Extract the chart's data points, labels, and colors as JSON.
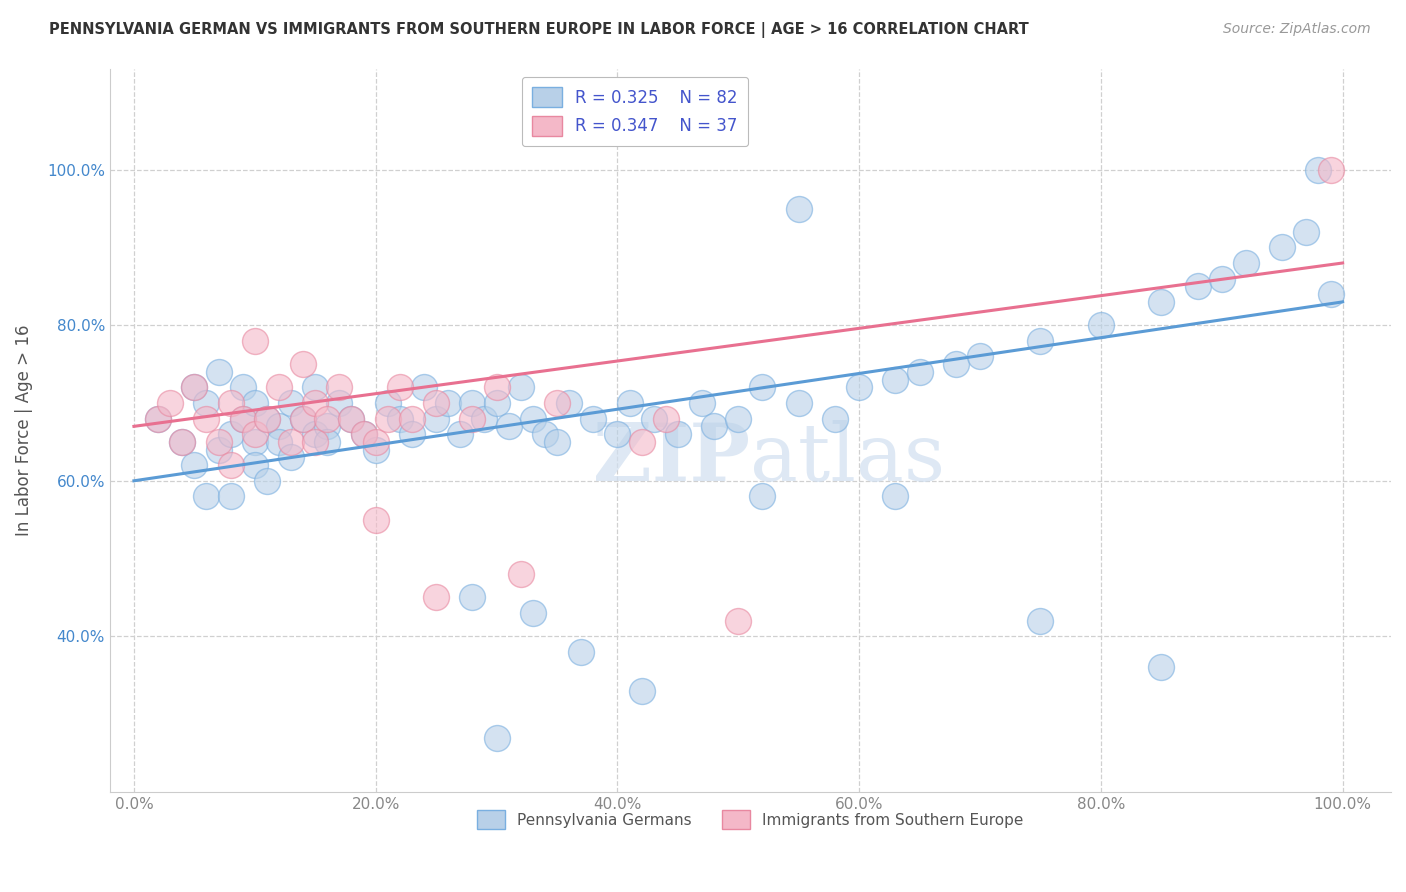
{
  "title": "PENNSYLVANIA GERMAN VS IMMIGRANTS FROM SOUTHERN EUROPE IN LABOR FORCE | AGE > 16 CORRELATION CHART",
  "source": "Source: ZipAtlas.com",
  "ylabel": "In Labor Force | Age > 16",
  "x_ticklabels": [
    "0.0%",
    "20.0%",
    "40.0%",
    "60.0%",
    "80.0%",
    "100.0%"
  ],
  "y_ticklabels": [
    "40.0%",
    "60.0%",
    "80.0%",
    "100.0%"
  ],
  "x_ticks": [
    0,
    20,
    40,
    60,
    80,
    100
  ],
  "y_ticks": [
    40,
    60,
    80,
    100
  ],
  "xlim": [
    -2,
    104
  ],
  "ylim": [
    20,
    113
  ],
  "legend_labels": [
    "Pennsylvania Germans",
    "Immigrants from Southern Europe"
  ],
  "legend_r1": "R = 0.325",
  "legend_n1": "N = 82",
  "legend_r2": "R = 0.347",
  "legend_n2": "N = 37",
  "color_blue": "#b8d0e8",
  "color_pink": "#f4b8c8",
  "edge_blue": "#7aafe0",
  "edge_pink": "#e888a0",
  "line_blue": "#5b9bd5",
  "line_pink": "#e87090",
  "watermark_color": "#d0dff0",
  "background_color": "#ffffff",
  "grid_color": "#d0d0d0",
  "title_color": "#333333",
  "legend_text_color": "#4455cc",
  "ytick_color": "#4488cc",
  "xtick_color": "#888888",
  "blue_scatter_x": [
    2,
    4,
    5,
    5,
    6,
    6,
    7,
    7,
    8,
    8,
    9,
    9,
    10,
    10,
    10,
    11,
    11,
    12,
    12,
    13,
    13,
    14,
    15,
    15,
    16,
    16,
    17,
    18,
    19,
    20,
    21,
    22,
    23,
    24,
    25,
    26,
    27,
    28,
    29,
    30,
    31,
    32,
    33,
    34,
    35,
    36,
    38,
    40,
    41,
    43,
    45,
    47,
    48,
    50,
    52,
    55,
    58,
    60,
    63,
    65,
    68,
    70,
    75,
    80,
    85,
    88,
    90,
    92,
    95,
    97,
    99,
    28,
    33,
    37,
    42,
    52,
    63,
    75,
    85,
    98,
    55,
    30
  ],
  "blue_scatter_y": [
    68,
    65,
    72,
    62,
    58,
    70,
    64,
    74,
    66,
    58,
    68,
    72,
    65,
    62,
    70,
    68,
    60,
    67,
    65,
    63,
    70,
    68,
    66,
    72,
    67,
    65,
    70,
    68,
    66,
    64,
    70,
    68,
    66,
    72,
    68,
    70,
    66,
    70,
    68,
    70,
    67,
    72,
    68,
    66,
    65,
    70,
    68,
    66,
    70,
    68,
    66,
    70,
    67,
    68,
    72,
    70,
    68,
    72,
    73,
    74,
    75,
    76,
    78,
    80,
    83,
    85,
    86,
    88,
    90,
    92,
    84,
    45,
    43,
    38,
    33,
    58,
    58,
    42,
    36,
    100,
    95,
    27
  ],
  "pink_scatter_x": [
    2,
    3,
    4,
    5,
    6,
    7,
    8,
    8,
    9,
    10,
    11,
    12,
    13,
    14,
    15,
    15,
    16,
    17,
    18,
    19,
    20,
    21,
    22,
    23,
    25,
    28,
    30,
    35,
    44,
    42,
    50,
    99,
    10,
    14,
    20,
    25,
    32
  ],
  "pink_scatter_y": [
    68,
    70,
    65,
    72,
    68,
    65,
    62,
    70,
    68,
    66,
    68,
    72,
    65,
    68,
    70,
    65,
    68,
    72,
    68,
    66,
    65,
    68,
    72,
    68,
    70,
    68,
    72,
    70,
    68,
    65,
    42,
    100,
    78,
    75,
    55,
    45,
    48
  ],
  "blue_line_x": [
    0,
    100
  ],
  "blue_line_y": [
    60,
    83
  ],
  "pink_line_x": [
    0,
    100
  ],
  "pink_line_y": [
    67,
    88
  ]
}
